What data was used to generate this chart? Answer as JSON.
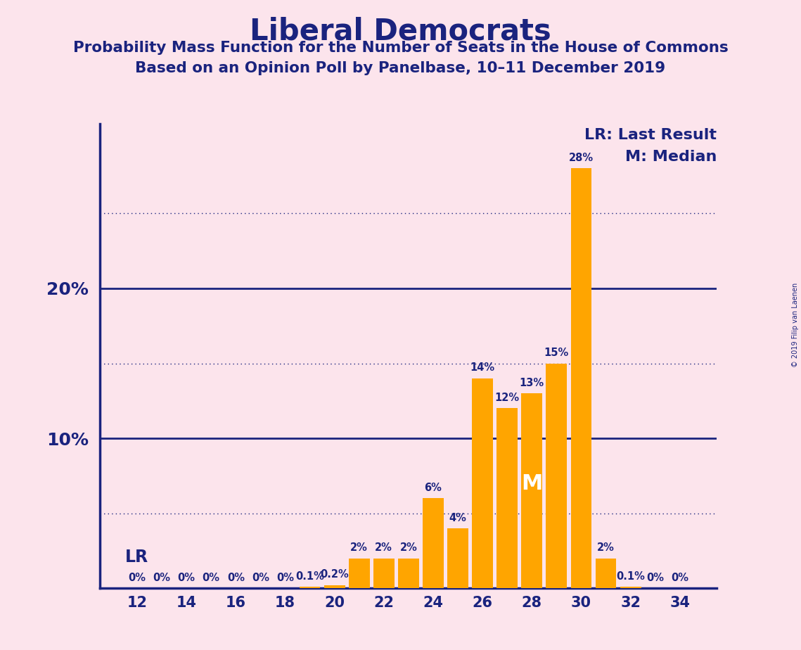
{
  "title": "Liberal Democrats",
  "subtitle1": "Probability Mass Function for the Number of Seats in the House of Commons",
  "subtitle2": "Based on an Opinion Poll by Panelbase, 10–11 December 2019",
  "background_color": "#fce4ec",
  "bar_color": "#FFA500",
  "text_color": "#1a237e",
  "seats": [
    12,
    13,
    14,
    15,
    16,
    17,
    18,
    19,
    20,
    21,
    22,
    23,
    24,
    25,
    26,
    27,
    28,
    29,
    30,
    31,
    32,
    33,
    34
  ],
  "probabilities": [
    0.0,
    0.0,
    0.0,
    0.0,
    0.0,
    0.0,
    0.0,
    0.1,
    0.2,
    2.0,
    2.0,
    2.0,
    6.0,
    4.0,
    14.0,
    12.0,
    13.0,
    15.0,
    28.0,
    2.0,
    0.1,
    0.0,
    0.0
  ],
  "labels": [
    "0%",
    "0%",
    "0%",
    "0%",
    "0%",
    "0%",
    "0%",
    "0.1%",
    "0.2%",
    "2%",
    "2%",
    "2%",
    "6%",
    "4%",
    "14%",
    "12%",
    "13%",
    "15%",
    "28%",
    "2%",
    "0.1%",
    "0%",
    "0%"
  ],
  "median_seat": 28,
  "ylim": [
    0,
    31
  ],
  "dotted_lines": [
    5,
    15,
    25
  ],
  "solid_lines": [
    10,
    20
  ],
  "copyright_text": "© 2019 Filip van Laenen",
  "lr_label": "LR: Last Result",
  "median_label": "M: Median",
  "lr_marker": "LR",
  "median_marker": "M",
  "xlabel_seats": [
    12,
    14,
    16,
    18,
    20,
    22,
    24,
    26,
    28,
    30,
    32,
    34
  ],
  "bar_width": 0.85
}
